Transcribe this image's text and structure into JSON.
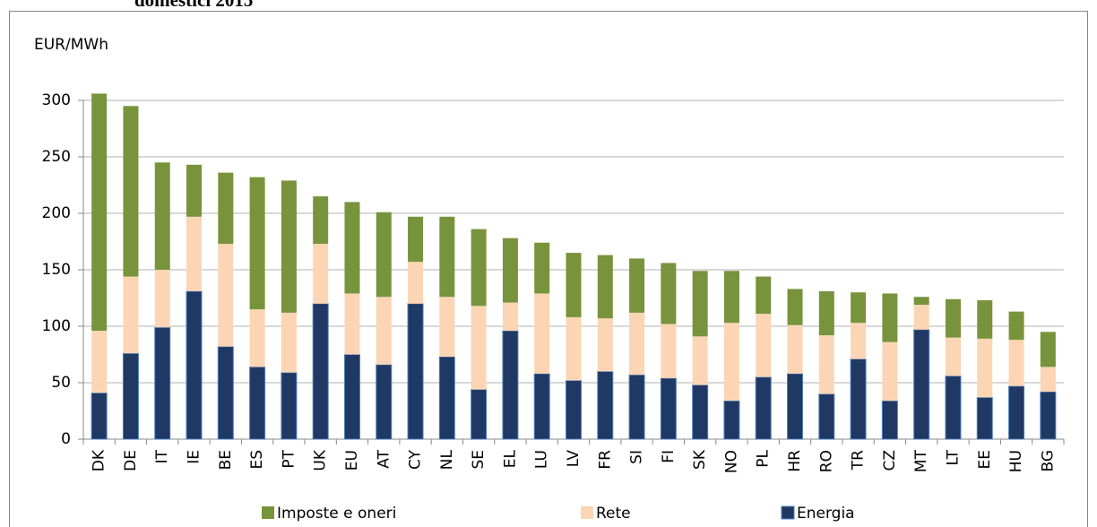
{
  "chart_data": {
    "type": "stacked-bar",
    "title": "domestici 2015",
    "y_label": "EUR/MWh",
    "categories": [
      "DK",
      "DE",
      "IT",
      "IE",
      "BE",
      "ES",
      "PT",
      "UK",
      "EU",
      "AT",
      "CY",
      "NL",
      "SE",
      "EL",
      "LU",
      "LV",
      "FR",
      "SI",
      "FI",
      "SK",
      "NO",
      "PL",
      "HR",
      "RO",
      "TR",
      "CZ",
      "MT",
      "LT",
      "EE",
      "HU",
      "BG"
    ],
    "series": [
      {
        "name": "Energia",
        "color": "#1f3864",
        "values": [
          41,
          76,
          99,
          131,
          82,
          64,
          59,
          120,
          75,
          66,
          120,
          73,
          44,
          96,
          58,
          52,
          60,
          57,
          54,
          48,
          34,
          55,
          58,
          40,
          71,
          34,
          97,
          56,
          37,
          47,
          42
        ]
      },
      {
        "name": "Rete",
        "color": "#fcd5b5",
        "values": [
          55,
          68,
          51,
          66,
          91,
          51,
          53,
          53,
          54,
          60,
          37,
          53,
          74,
          25,
          71,
          56,
          47,
          55,
          48,
          43,
          69,
          56,
          43,
          52,
          32,
          52,
          22,
          34,
          52,
          41,
          22
        ]
      },
      {
        "name": "Imposte e oneri",
        "color": "#77933c",
        "values": [
          210,
          151,
          95,
          46,
          63,
          117,
          117,
          42,
          81,
          75,
          40,
          71,
          68,
          57,
          45,
          57,
          56,
          48,
          54,
          58,
          46,
          33,
          32,
          39,
          27,
          43,
          7,
          34,
          34,
          25,
          31
        ]
      }
    ],
    "ylim": [
      0,
      300
    ],
    "yticks": [
      0,
      50,
      100,
      150,
      200,
      250,
      300
    ],
    "grid": true
  }
}
